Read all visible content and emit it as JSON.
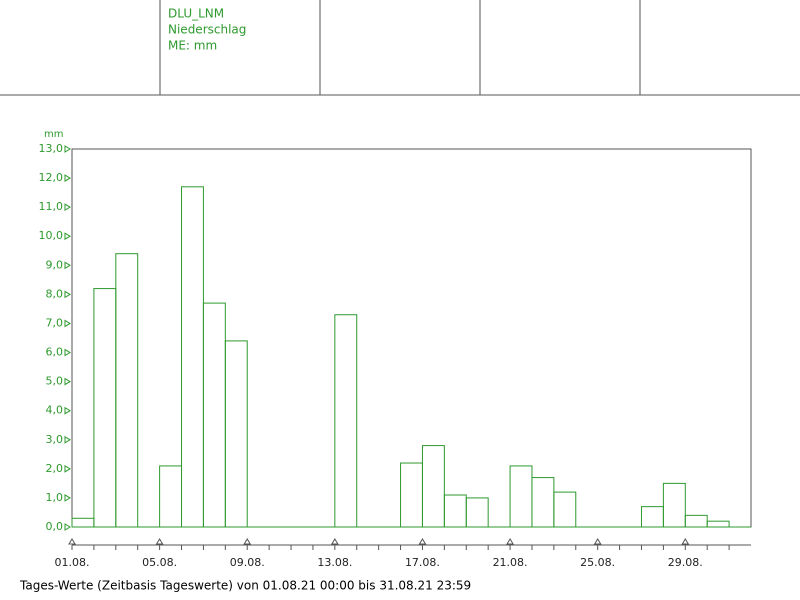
{
  "header": {
    "lines": [
      "DLU_LNM",
      "Niederschlag",
      "ME: mm"
    ]
  },
  "chart_data": {
    "type": "bar",
    "ylabel": "mm",
    "categories": [
      "01.08.",
      null,
      null,
      null,
      "05.08.",
      null,
      null,
      null,
      "09.08.",
      null,
      null,
      null,
      "13.08.",
      null,
      null,
      null,
      "17.08.",
      null,
      null,
      null,
      "21.08.",
      null,
      null,
      null,
      "25.08.",
      null,
      null,
      null,
      "29.08.",
      null,
      null
    ],
    "values": [
      0.3,
      8.2,
      9.4,
      0,
      2.1,
      11.7,
      7.7,
      6.4,
      0,
      0,
      0,
      0,
      7.3,
      0,
      0,
      2.2,
      2.8,
      1.1,
      1.0,
      0,
      2.1,
      1.7,
      1.2,
      0,
      0,
      0,
      0.7,
      1.5,
      0.4,
      0.2,
      0
    ],
    "color": "#2e9a2e",
    "ylim": [
      0,
      13
    ],
    "yticks": [
      {
        "value": 0,
        "label": "0,0"
      },
      {
        "value": 1,
        "label": "1,0"
      },
      {
        "value": 2,
        "label": "2,0"
      },
      {
        "value": 3,
        "label": "3,0"
      },
      {
        "value": 4,
        "label": "4,0"
      },
      {
        "value": 5,
        "label": "5,0"
      },
      {
        "value": 6,
        "label": "6,0"
      },
      {
        "value": 7,
        "label": "7,0"
      },
      {
        "value": 8,
        "label": "8,0"
      },
      {
        "value": 9,
        "label": "9,0"
      },
      {
        "value": 10,
        "label": "10,0"
      },
      {
        "value": 11,
        "label": "11,0"
      },
      {
        "value": 12,
        "label": "12,0"
      },
      {
        "value": 13,
        "label": "13,0"
      }
    ],
    "grid": false
  },
  "footer": "Tages-Werte (Zeitbasis Tageswerte) von 01.08.21 00:00 bis 31.08.21 23:59"
}
